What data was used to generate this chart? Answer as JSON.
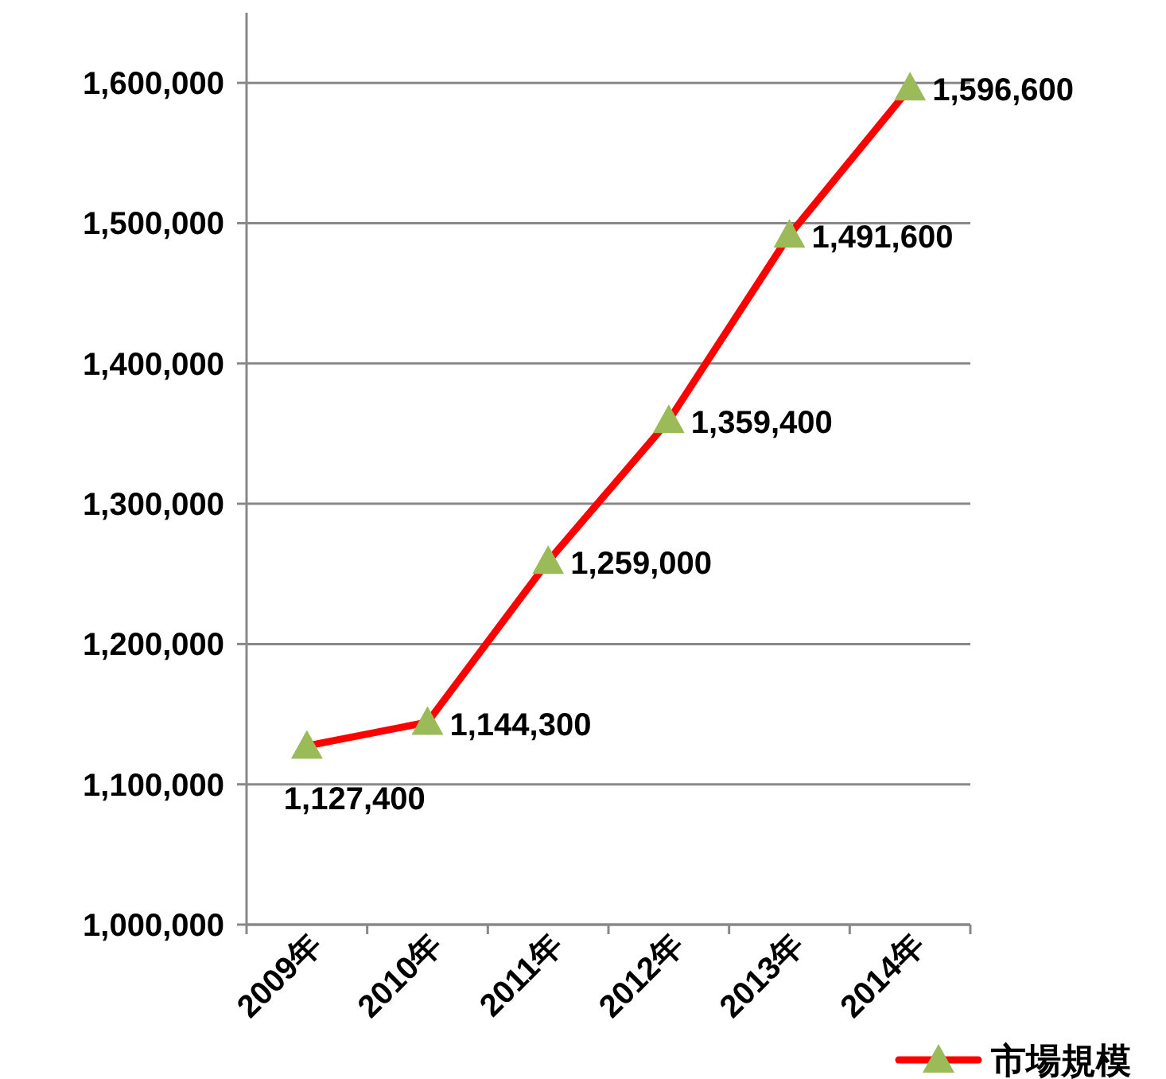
{
  "chart_data": {
    "type": "line",
    "categories": [
      "2009年",
      "2010年",
      "2011年",
      "2012年",
      "2013年",
      "2014年"
    ],
    "series": [
      {
        "name": "市場規模",
        "color": "#ff0000",
        "colors": [
          "#9bbb59",
          "#9bbb59",
          "#9bbb59",
          "#9bbb59",
          "#9bbb59",
          "#9bbb59"
        ],
        "values": [
          1127400,
          1144300,
          1259000,
          1359400,
          1491600,
          1596600
        ],
        "value_labels": [
          "1,127,400",
          "1,144,300",
          "1,259,000",
          "1,359,400",
          "1,491,600",
          "1,596,600"
        ]
      }
    ],
    "ylim": [
      1000000,
      1650000
    ],
    "yticks": [
      {
        "value": 1000000,
        "label": "1,000,000"
      },
      {
        "value": 1100000,
        "label": "1,100,000"
      },
      {
        "value": 1200000,
        "label": "1,200,000"
      },
      {
        "value": 1300000,
        "label": "1,300,000"
      },
      {
        "value": 1400000,
        "label": "1,400,000"
      },
      {
        "value": 1500000,
        "label": "1,500,000"
      },
      {
        "value": 1600000,
        "label": "1,600,000"
      }
    ],
    "grid": "y",
    "marker": "triangle",
    "line_style": "solid",
    "legend": "bottom right"
  }
}
